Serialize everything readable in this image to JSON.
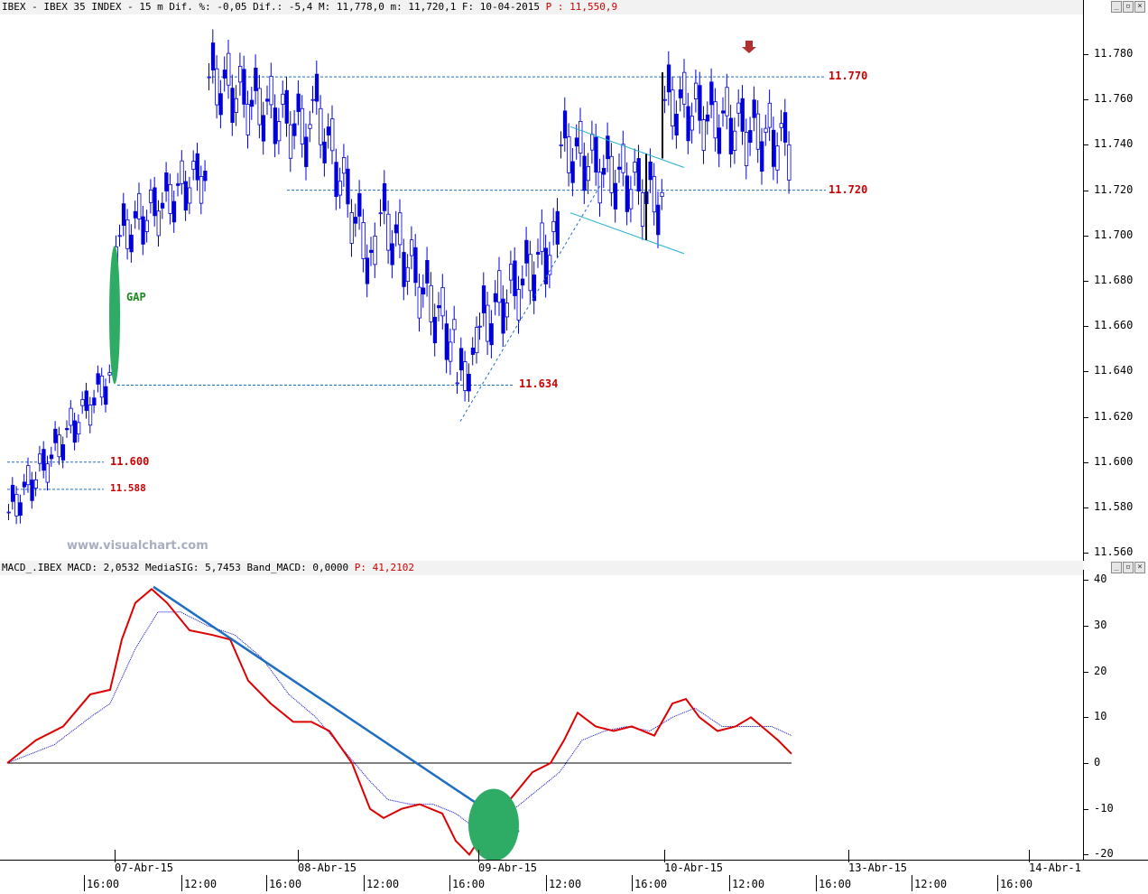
{
  "price_panel": {
    "header_parts": {
      "main": "IBEX - IBEX 35 INDEX -  15 m Dif. %: -0,05 Dif.: -5,4 M: 11,778,0 m: 11,720,1 F: 10-04-2015 ",
      "p": "P : 11,550,9"
    },
    "y_ticks": [
      "11.780",
      "11.760",
      "11.740",
      "11.720",
      "11.700",
      "11.680",
      "11.660",
      "11.640",
      "11.620",
      "11.600",
      "11.580",
      "11.560"
    ],
    "levels": [
      {
        "label": "11.770",
        "price": 11770
      },
      {
        "label": "11.720",
        "price": 11720
      },
      {
        "label": "11.634",
        "price": 11634
      },
      {
        "label": "11.600",
        "price": 11600
      },
      {
        "label": "11.588",
        "price": 11588
      }
    ],
    "gap_label": "GAP",
    "watermark": "www.visualchart.com"
  },
  "macd_panel": {
    "header_parts": {
      "main": "MACD_.IBEX MACD: 2,0532 MediaSIG: 5,7453 Band_MACD: 0,0000 ",
      "p": "P: 41,2102"
    },
    "y_ticks": [
      "40",
      "30",
      "20",
      "10",
      "0",
      "-10",
      "-20"
    ]
  },
  "x_axis": {
    "dates": [
      "07-Abr-15",
      "08-Abr-15",
      "09-Abr-15",
      "10-Abr-15",
      "13-Abr-15",
      "14-Abr-1"
    ],
    "times": [
      "16:00",
      "12:00",
      "16:00",
      "12:00",
      "16:00",
      "12:00",
      "16:00",
      "12:00",
      "16:00",
      "12:00",
      "16:00"
    ]
  },
  "colors": {
    "candle": "#0000dd",
    "macd": "#dd0000",
    "signal": "#0000cc",
    "trend": "#1e6fc0",
    "levels": "#cc0000",
    "green": "#2eab64"
  }
}
